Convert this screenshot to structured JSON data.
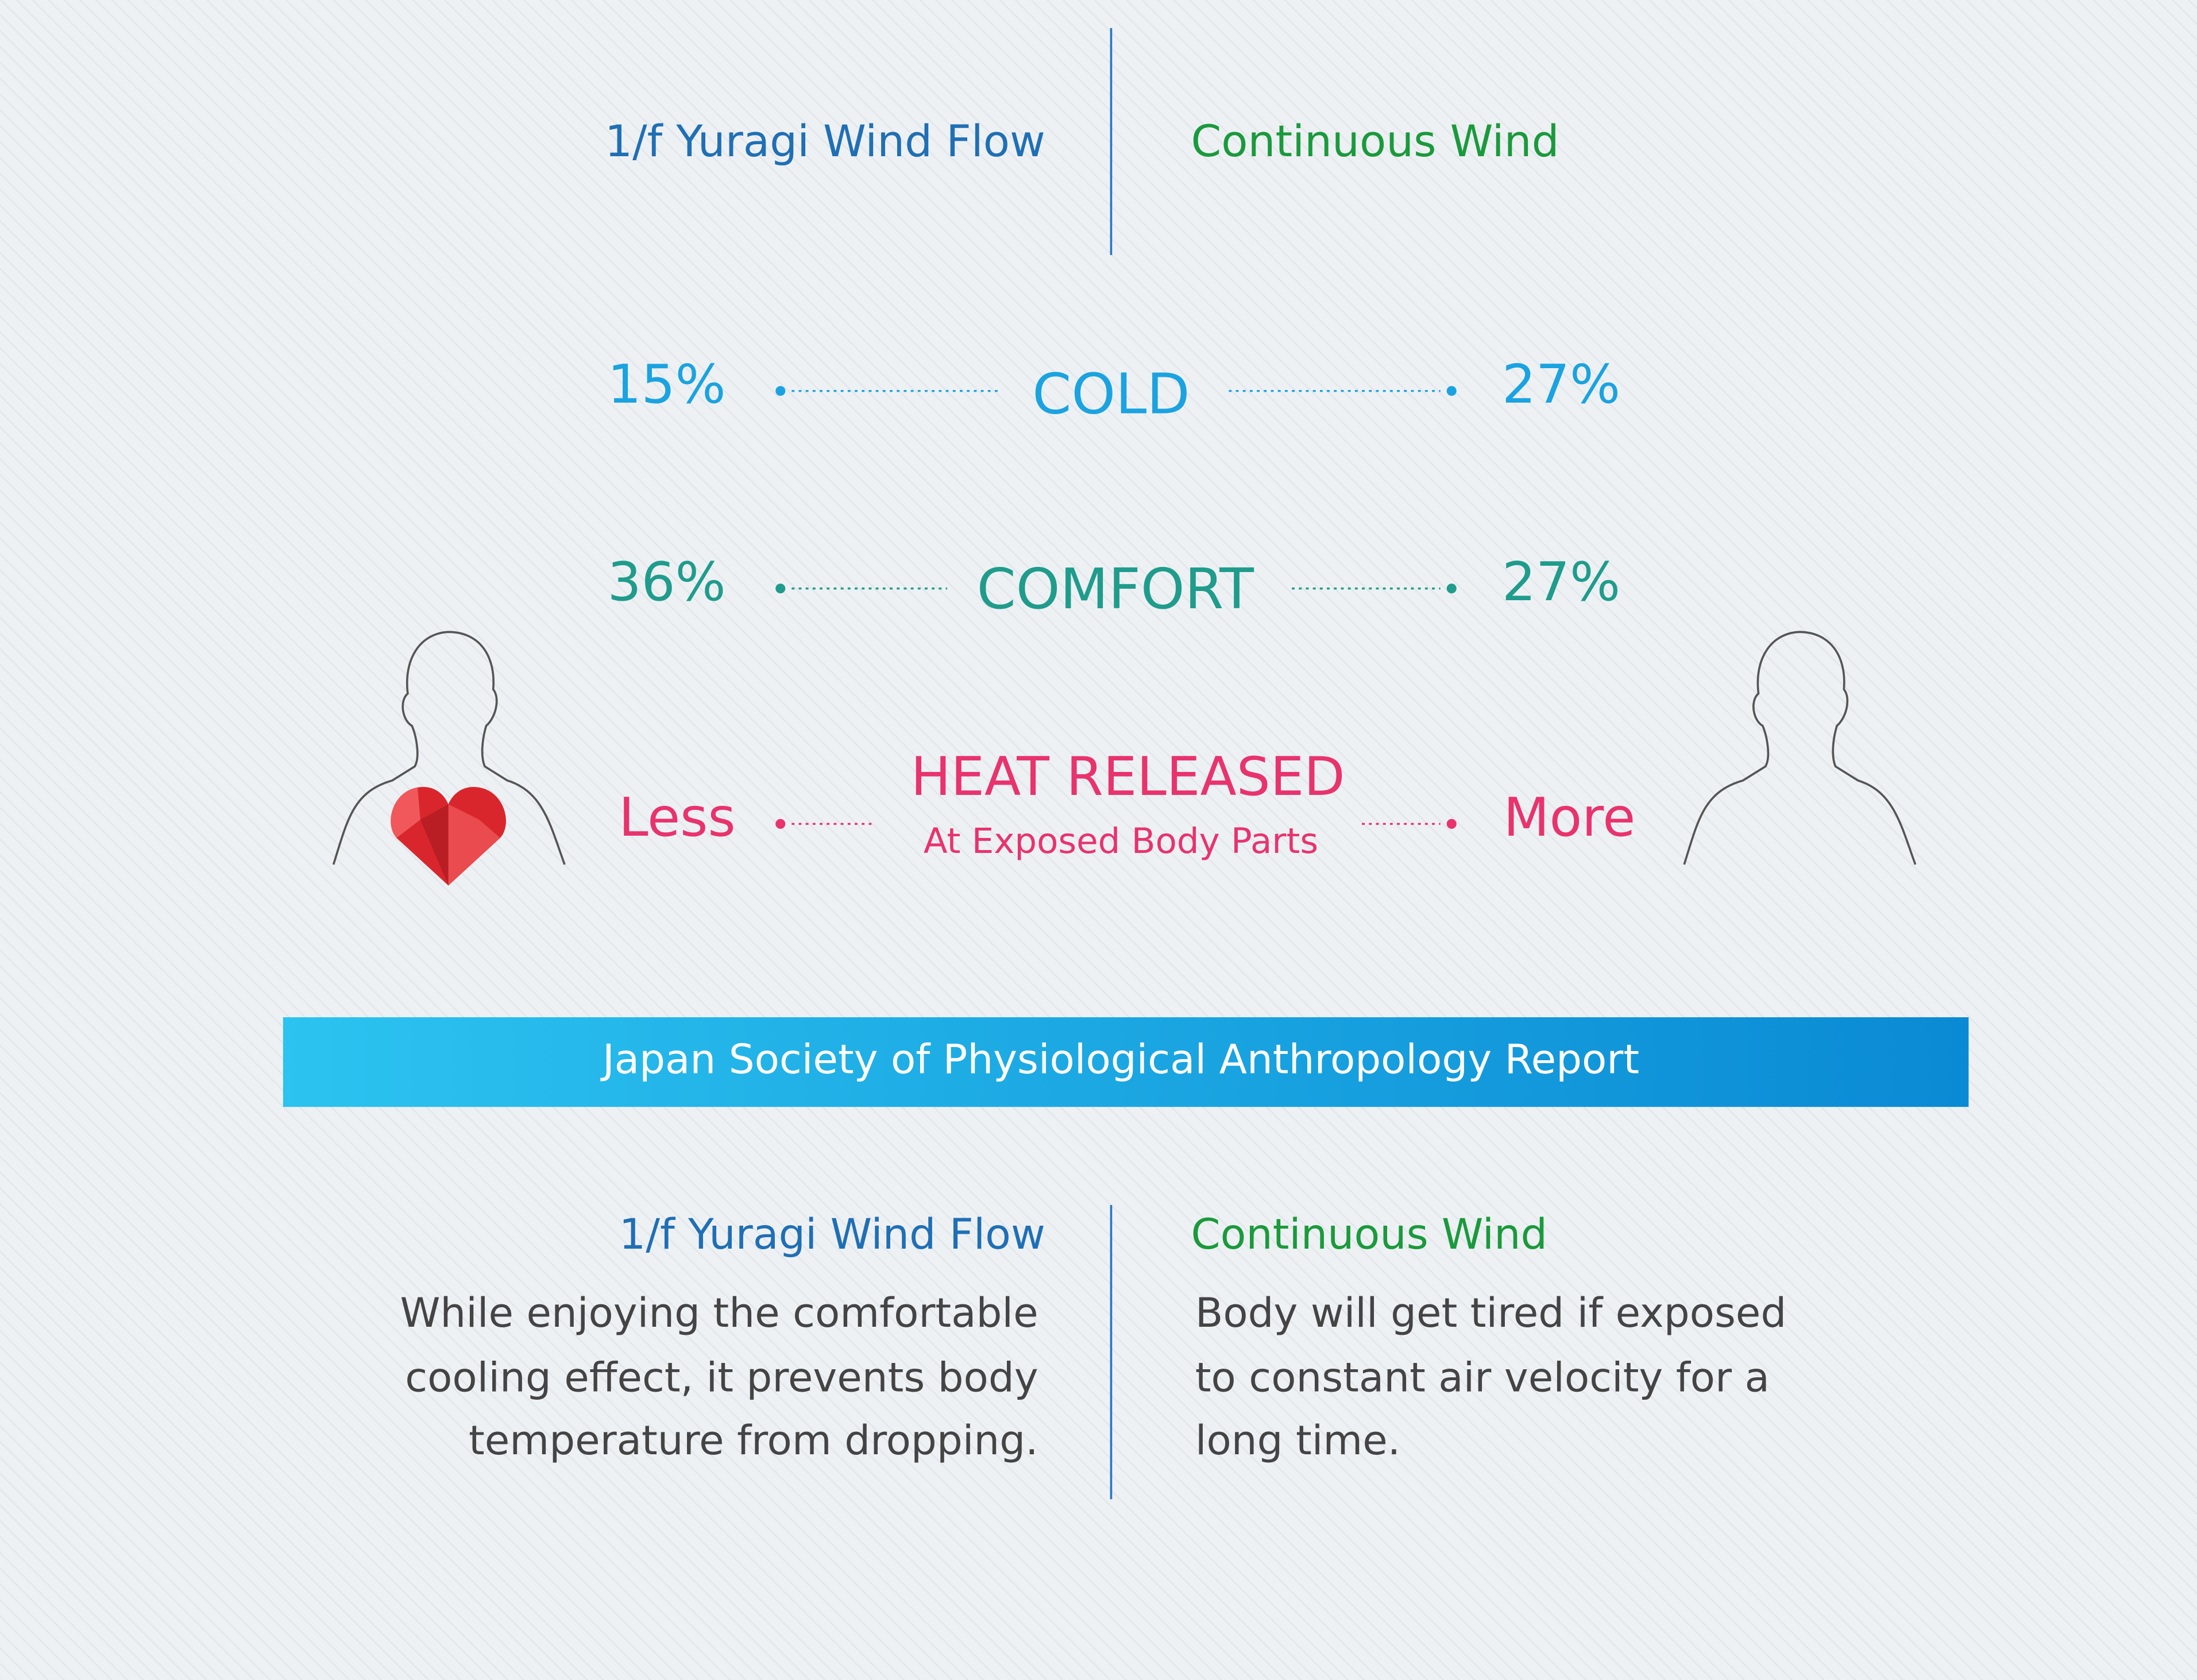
{
  "header": {
    "left": "1/f Yuragi Wind Flow",
    "right": "Continuous Wind"
  },
  "rows": [
    {
      "left": "15%",
      "label": "COLD",
      "right": "27%"
    },
    {
      "left": "36%",
      "label": "COMFORT",
      "right": "27%"
    },
    {
      "left": "Less",
      "label": "HEAT RELEASED",
      "sublabel": "At Exposed Body Parts",
      "right": "More"
    }
  ],
  "banner": "Japan Society of Physiological Anthropology Report",
  "footer": {
    "left": {
      "title": "1/f Yuragi Wind Flow",
      "lines": [
        "While enjoying the comfortable",
        "cooling effect, it prevents body",
        "temperature from dropping."
      ]
    },
    "right": {
      "title": "Continuous Wind",
      "lines": [
        "Body will get tired if exposed",
        "to constant air velocity for a",
        "long time."
      ]
    }
  }
}
